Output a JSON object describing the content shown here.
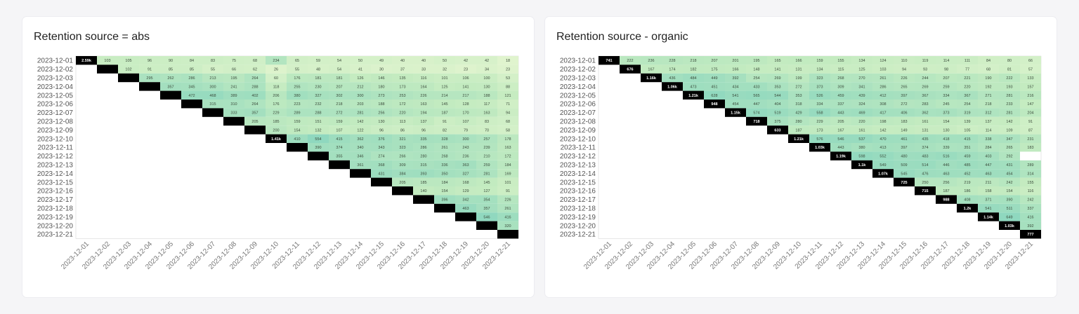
{
  "charts": [
    {
      "title": "Retention source = abs",
      "chart_data": {
        "type": "heatmap",
        "title": "Retention source = abs",
        "rows": [
          "2023-12-01",
          "2023-12-02",
          "2023-12-03",
          "2023-12-04",
          "2023-12-05",
          "2023-12-06",
          "2023-12-07",
          "2023-12-08",
          "2023-12-09",
          "2023-12-10",
          "2023-12-11",
          "2023-12-12",
          "2023-12-13",
          "2023-12-14",
          "2023-12-15",
          "2023-12-16",
          "2023-12-17",
          "2023-12-18",
          "2023-12-19",
          "2023-12-20",
          "2023-12-21"
        ],
        "columns": [
          "2023-12-01",
          "2023-12-02",
          "2023-12-03",
          "2023-12-04",
          "2023-12-05",
          "2023-12-06",
          "2023-12-07",
          "2023-12-08",
          "2023-12-09",
          "2023-12-10",
          "2023-12-11",
          "2023-12-12",
          "2023-12-13",
          "2023-12-14",
          "2023-12-15",
          "2023-12-16",
          "2023-12-17",
          "2023-12-18",
          "2023-12-19",
          "2023-12-20",
          "2023-12-21"
        ],
        "values": [
          [
            "2.59k",
            "103",
            "105",
            "96",
            "90",
            "84",
            "83",
            "75",
            "68",
            "234",
            "65",
            "59",
            "54",
            "50",
            "49",
            "40",
            "40",
            "50",
            "42",
            "42",
            "18"
          ],
          [
            "",
            "",
            "102",
            "91",
            "85",
            "85",
            "55",
            "66",
            "62",
            "26",
            "55",
            "48",
            "54",
            "41",
            "30",
            "37",
            "33",
            "32",
            "23",
            "34",
            "23"
          ],
          [
            "",
            "",
            "",
            "295",
            "262",
            "286",
            "213",
            "195",
            "264",
            "60",
            "176",
            "181",
            "181",
            "126",
            "146",
            "135",
            "116",
            "101",
            "106",
            "100",
            "53"
          ],
          [
            "",
            "",
            "",
            "",
            "357",
            "345",
            "300",
            "241",
            "288",
            "118",
            "255",
            "230",
            "207",
            "212",
            "180",
            "173",
            "164",
            "125",
            "141",
            "130",
            "88"
          ],
          [
            "",
            "",
            "",
            "",
            "",
            "472",
            "468",
            "389",
            "402",
            "206",
            "380",
            "327",
            "302",
            "300",
            "273",
            "253",
            "226",
            "214",
            "217",
            "188",
            "121"
          ],
          [
            "",
            "",
            "",
            "",
            "",
            "",
            "315",
            "310",
            "264",
            "176",
            "223",
            "232",
            "218",
            "203",
            "188",
            "172",
            "163",
            "145",
            "128",
            "117",
            "71"
          ],
          [
            "",
            "",
            "",
            "",
            "",
            "",
            "",
            "333",
            "357",
            "229",
            "289",
            "288",
            "272",
            "281",
            "256",
            "220",
            "194",
            "187",
            "170",
            "163",
            "94"
          ],
          [
            "",
            "",
            "",
            "",
            "",
            "",
            "",
            "",
            "205",
            "185",
            "159",
            "151",
            "159",
            "142",
            "130",
            "113",
            "137",
            "91",
            "107",
            "83",
            "68"
          ],
          [
            "",
            "",
            "",
            "",
            "",
            "",
            "",
            "",
            "",
            "200",
            "154",
            "132",
            "107",
            "122",
            "96",
            "86",
            "96",
            "82",
            "79",
            "70",
            "58"
          ],
          [
            "",
            "",
            "",
            "",
            "",
            "",
            "",
            "",
            "",
            "1.41k",
            "410",
            "554",
            "415",
            "362",
            "376",
            "321",
            "335",
            "328",
            "300",
            "257",
            "178"
          ],
          [
            "",
            "",
            "",
            "",
            "",
            "",
            "",
            "",
            "",
            "",
            "",
            "390",
            "374",
            "340",
            "343",
            "323",
            "286",
            "261",
            "243",
            "239",
            "163"
          ],
          [
            "",
            "",
            "",
            "",
            "",
            "",
            "",
            "",
            "",
            "",
            "",
            "",
            "355",
            "346",
            "274",
            "266",
            "280",
            "268",
            "236",
            "210",
            "172"
          ],
          [
            "",
            "",
            "",
            "",
            "",
            "",
            "",
            "",
            "",
            "",
            "",
            "",
            "",
            "361",
            "368",
            "309",
            "315",
            "336",
            "363",
            "259",
            "184"
          ],
          [
            "",
            "",
            "",
            "",
            "",
            "",
            "",
            "",
            "",
            "",
            "",
            "",
            "",
            "",
            "431",
            "384",
            "393",
            "350",
            "327",
            "281",
            "169"
          ],
          [
            "",
            "",
            "",
            "",
            "",
            "",
            "",
            "",
            "",
            "",
            "",
            "",
            "",
            "",
            "",
            "205",
            "185",
            "184",
            "168",
            "145",
            "101"
          ],
          [
            "",
            "",
            "",
            "",
            "",
            "",
            "",
            "",
            "",
            "",
            "",
            "",
            "",
            "",
            "",
            "",
            "140",
            "154",
            "129",
            "127",
            "91"
          ],
          [
            "",
            "",
            "",
            "",
            "",
            "",
            "",
            "",
            "",
            "",
            "",
            "",
            "",
            "",
            "",
            "",
            "",
            "396",
            "342",
            "354",
            "226"
          ],
          [
            "",
            "",
            "",
            "",
            "",
            "",
            "",
            "",
            "",
            "",
            "",
            "",
            "",
            "",
            "",
            "",
            "",
            "",
            "463",
            "357",
            "261"
          ],
          [
            "",
            "",
            "",
            "",
            "",
            "",
            "",
            "",
            "",
            "",
            "",
            "",
            "",
            "",
            "",
            "",
            "",
            "",
            "",
            "546",
            "416"
          ],
          [
            "",
            "",
            "",
            "",
            "",
            "",
            "",
            "",
            "",
            "",
            "",
            "",
            "",
            "",
            "",
            "",
            "",
            "",
            "",
            "",
            "320"
          ],
          [
            "",
            "",
            "",
            "",
            "",
            "",
            "",
            "",
            "",
            "",
            "",
            "",
            "",
            "",
            "",
            "",
            "",
            "",
            "",
            "",
            ""
          ]
        ],
        "colors": {
          "low": "#f0f9d6",
          "mid": "#c3ebc0",
          "high": "#8fd8bf",
          "diagonal": "#000000"
        }
      }
    },
    {
      "title": "Retention source - organic",
      "chart_data": {
        "type": "heatmap",
        "title": "Retention source - organic",
        "rows": [
          "2023-12-01",
          "2023-12-02",
          "2023-12-03",
          "2023-12-04",
          "2023-12-05",
          "2023-12-06",
          "2023-12-07",
          "2023-12-08",
          "2023-12-09",
          "2023-12-10",
          "2023-12-11",
          "2023-12-12",
          "2023-12-13",
          "2023-12-14",
          "2023-12-15",
          "2023-12-16",
          "2023-12-17",
          "2023-12-18",
          "2023-12-19",
          "2023-12-20",
          "2023-12-21"
        ],
        "columns": [
          "2023-12-01",
          "2023-12-02",
          "2023-12-03",
          "2023-12-04",
          "2023-12-05",
          "2023-12-06",
          "2023-12-07",
          "2023-12-08",
          "2023-12-09",
          "2023-12-10",
          "2023-12-11",
          "2023-12-12",
          "2023-12-13",
          "2023-12-14",
          "2023-12-15",
          "2023-12-16",
          "2023-12-17",
          "2023-12-18",
          "2023-12-19",
          "2023-12-20",
          "2023-12-21"
        ],
        "values": [
          [
            "741",
            "222",
            "236",
            "228",
            "218",
            "207",
            "201",
            "195",
            "165",
            "166",
            "159",
            "155",
            "134",
            "124",
            "110",
            "119",
            "114",
            "111",
            "84",
            "80",
            "66"
          ],
          [
            "",
            "676",
            "167",
            "174",
            "182",
            "175",
            "166",
            "148",
            "141",
            "131",
            "134",
            "115",
            "125",
            "103",
            "94",
            "93",
            "98",
            "77",
            "68",
            "81",
            "57"
          ],
          [
            "",
            "",
            "1.16k",
            "436",
            "484",
            "449",
            "392",
            "254",
            "269",
            "199",
            "323",
            "268",
            "270",
            "261",
            "226",
            "244",
            "207",
            "221",
            "190",
            "222",
            "133"
          ],
          [
            "",
            "",
            "",
            "1.06k",
            "473",
            "451",
            "434",
            "433",
            "353",
            "272",
            "373",
            "309",
            "341",
            "286",
            "265",
            "269",
            "259",
            "220",
            "192",
            "193",
            "157"
          ],
          [
            "",
            "",
            "",
            "",
            "1.21k",
            "628",
            "541",
            "565",
            "544",
            "353",
            "526",
            "459",
            "439",
            "412",
            "397",
            "367",
            "334",
            "367",
            "271",
            "281",
            "216"
          ],
          [
            "",
            "",
            "",
            "",
            "",
            "948",
            "454",
            "447",
            "404",
            "318",
            "334",
            "337",
            "324",
            "308",
            "272",
            "283",
            "245",
            "254",
            "218",
            "233",
            "147"
          ],
          [
            "",
            "",
            "",
            "",
            "",
            "",
            "1.15k",
            "574",
            "519",
            "429",
            "558",
            "443",
            "469",
            "417",
            "406",
            "362",
            "373",
            "319",
            "312",
            "281",
            "204"
          ],
          [
            "",
            "",
            "",
            "",
            "",
            "",
            "",
            "718",
            "375",
            "280",
            "229",
            "205",
            "220",
            "198",
            "183",
            "161",
            "154",
            "139",
            "137",
            "142",
            "91"
          ],
          [
            "",
            "",
            "",
            "",
            "",
            "",
            "",
            "",
            "633",
            "187",
            "173",
            "167",
            "161",
            "142",
            "149",
            "131",
            "130",
            "105",
            "114",
            "109",
            "87"
          ],
          [
            "",
            "",
            "",
            "",
            "",
            "",
            "",
            "",
            "",
            "1.21k",
            "576",
            "546",
            "537",
            "470",
            "461",
            "435",
            "418",
            "415",
            "338",
            "347",
            "231"
          ],
          [
            "",
            "",
            "",
            "",
            "",
            "",
            "",
            "",
            "",
            "",
            "1.03k",
            "443",
            "380",
            "413",
            "397",
            "374",
            "339",
            "351",
            "284",
            "265",
            "183"
          ],
          [
            "",
            "",
            "",
            "",
            "",
            "",
            "",
            "",
            "",
            "",
            "",
            "1.19k",
            "598",
            "552",
            "480",
            "483",
            "516",
            "459",
            "403",
            "292",
            ""
          ],
          [
            "",
            "",
            "",
            "",
            "",
            "",
            "",
            "",
            "",
            "",
            "",
            "",
            "1.1k",
            "549",
            "509",
            "514",
            "446",
            "485",
            "447",
            "431",
            "289"
          ],
          [
            "",
            "",
            "",
            "",
            "",
            "",
            "",
            "",
            "",
            "",
            "",
            "",
            "",
            "1.07k",
            "545",
            "476",
            "463",
            "452",
            "463",
            "454",
            "314"
          ],
          [
            "",
            "",
            "",
            "",
            "",
            "",
            "",
            "",
            "",
            "",
            "",
            "",
            "",
            "",
            "725",
            "250",
            "256",
            "219",
            "211",
            "242",
            "155"
          ],
          [
            "",
            "",
            "",
            "",
            "",
            "",
            "",
            "",
            "",
            "",
            "",
            "",
            "",
            "",
            "",
            "715",
            "187",
            "186",
            "158",
            "154",
            "116"
          ],
          [
            "",
            "",
            "",
            "",
            "",
            "",
            "",
            "",
            "",
            "",
            "",
            "",
            "",
            "",
            "",
            "",
            "988",
            "408",
            "371",
            "390",
            "242"
          ],
          [
            "",
            "",
            "",
            "",
            "",
            "",
            "",
            "",
            "",
            "",
            "",
            "",
            "",
            "",
            "",
            "",
            "",
            "1.2k",
            "541",
            "511",
            "337"
          ],
          [
            "",
            "",
            "",
            "",
            "",
            "",
            "",
            "",
            "",
            "",
            "",
            "",
            "",
            "",
            "",
            "",
            "",
            "",
            "1.14k",
            "649",
            "416"
          ],
          [
            "",
            "",
            "",
            "",
            "",
            "",
            "",
            "",
            "",
            "",
            "",
            "",
            "",
            "",
            "",
            "",
            "",
            "",
            "",
            "1.03k",
            "392"
          ],
          [
            "",
            "",
            "",
            "",
            "",
            "",
            "",
            "",
            "",
            "",
            "",
            "",
            "",
            "",
            "",
            "",
            "",
            "",
            "",
            "",
            "777"
          ]
        ],
        "colors": {
          "low": "#f0f9d6",
          "mid": "#c3ebc0",
          "high": "#8fd8bf",
          "diagonal": "#000000"
        }
      }
    }
  ]
}
